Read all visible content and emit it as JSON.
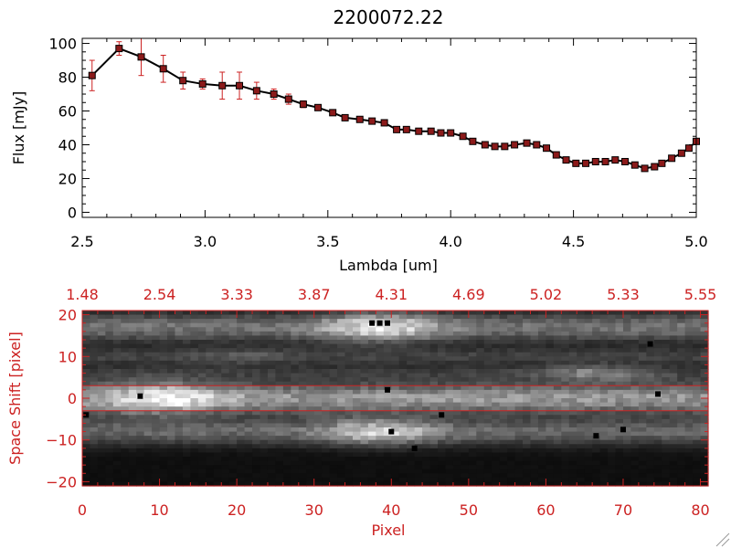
{
  "chart_data": [
    {
      "type": "line",
      "title": "2200072.22",
      "xlabel": "Lambda [um]",
      "ylabel": "Flux [mJy]",
      "xlim": [
        2.5,
        5.0
      ],
      "ylim": [
        -3,
        103
      ],
      "xticks": [
        2.5,
        3.0,
        3.5,
        4.0,
        4.5,
        5.0
      ],
      "xtick_labels": [
        "2.5",
        "3.0",
        "3.5",
        "4.0",
        "4.5",
        "5.0"
      ],
      "yticks": [
        0,
        20,
        40,
        60,
        80,
        100
      ],
      "ytick_labels": [
        "0",
        "20",
        "40",
        "60",
        "80",
        "100"
      ],
      "colors": {
        "line": "#000000",
        "marker": "#8b1a1a",
        "errorbar": "#cc2222"
      },
      "series": [
        {
          "name": "flux",
          "x": [
            2.54,
            2.65,
            2.74,
            2.83,
            2.91,
            2.99,
            3.07,
            3.14,
            3.21,
            3.28,
            3.34,
            3.4,
            3.46,
            3.52,
            3.57,
            3.63,
            3.68,
            3.73,
            3.78,
            3.82,
            3.87,
            3.92,
            3.96,
            4.0,
            4.05,
            4.09,
            4.14,
            4.18,
            4.22,
            4.26,
            4.31,
            4.35,
            4.39,
            4.43,
            4.47,
            4.51,
            4.55,
            4.59,
            4.63,
            4.67,
            4.71,
            4.75,
            4.79,
            4.83,
            4.86,
            4.9,
            4.94,
            4.97,
            5.0
          ],
          "y": [
            81,
            97,
            92,
            85,
            78,
            76,
            75,
            75,
            72,
            70,
            67,
            64,
            62,
            59,
            56,
            55,
            54,
            53,
            49,
            49,
            48,
            48,
            47,
            47,
            45,
            42,
            40,
            39,
            39,
            40,
            41,
            40,
            38,
            34,
            31,
            29,
            29,
            30,
            30,
            31,
            30,
            28,
            26,
            27,
            29,
            32,
            35,
            38,
            42
          ],
          "err": [
            9,
            4,
            11,
            8,
            5,
            3,
            8,
            8,
            5,
            3,
            3,
            2,
            1.5,
            1.2,
            1,
            1,
            1,
            1,
            1,
            1,
            1,
            1,
            1,
            1,
            1,
            1,
            1,
            1,
            1,
            1,
            1,
            1,
            1,
            1,
            1,
            1,
            1,
            1,
            1,
            1,
            1,
            1,
            1,
            1,
            1,
            1,
            1,
            1,
            1
          ]
        }
      ]
    },
    {
      "type": "heatmap",
      "xlabel": "Pixel",
      "ylabel": "Space Shift [pixel]",
      "xlim": [
        0,
        81
      ],
      "ylim": [
        -21,
        21
      ],
      "xticks": [
        0,
        10,
        20,
        30,
        40,
        50,
        60,
        70,
        80
      ],
      "xtick_labels": [
        "0",
        "10",
        "20",
        "30",
        "40",
        "50",
        "60",
        "70",
        "80"
      ],
      "yticks": [
        -20,
        -10,
        0,
        10,
        20
      ],
      "ytick_labels": [
        "−20",
        "−10",
        "0",
        "10",
        "20"
      ],
      "top_axis_positions": [
        0,
        10,
        20,
        30,
        40,
        50,
        60,
        70,
        80
      ],
      "top_axis_labels": [
        "1.48",
        "2.54",
        "3.33",
        "3.87",
        "4.31",
        "4.69",
        "5.02",
        "5.33",
        "5.55"
      ],
      "aperture_rows": [
        3,
        -3
      ],
      "colors": {
        "axis": "#cc2222",
        "aperture": "#cc2222"
      },
      "traces": [
        {
          "center": 0,
          "sigma": 2.6,
          "amp": 0.55,
          "peak_x": 10,
          "peak_amp": 0.45
        },
        {
          "center": 17,
          "sigma": 2.4,
          "amp": 0.4,
          "peak_x": 38,
          "peak_amp": 0.5
        },
        {
          "center": 10,
          "sigma": 1.5,
          "amp": 0.2,
          "peak_x": 20,
          "peak_amp": 0.1
        },
        {
          "center": -8,
          "sigma": 2.2,
          "amp": 0.35,
          "peak_x": 38,
          "peak_amp": 0.45
        },
        {
          "center": 6,
          "sigma": 1.3,
          "amp": 0.15,
          "peak_x": 66,
          "peak_amp": 0.3
        }
      ],
      "hot_pixels": [
        [
          7.5,
          0.5
        ],
        [
          39.5,
          2
        ],
        [
          40,
          -8
        ],
        [
          46.5,
          -4
        ],
        [
          66.5,
          -9
        ],
        [
          70,
          -7.5
        ],
        [
          74.5,
          1
        ],
        [
          37.5,
          18
        ],
        [
          38.5,
          18
        ],
        [
          39.5,
          18
        ],
        [
          0.5,
          -4
        ],
        [
          43,
          -12
        ],
        [
          73.5,
          13
        ]
      ]
    }
  ]
}
